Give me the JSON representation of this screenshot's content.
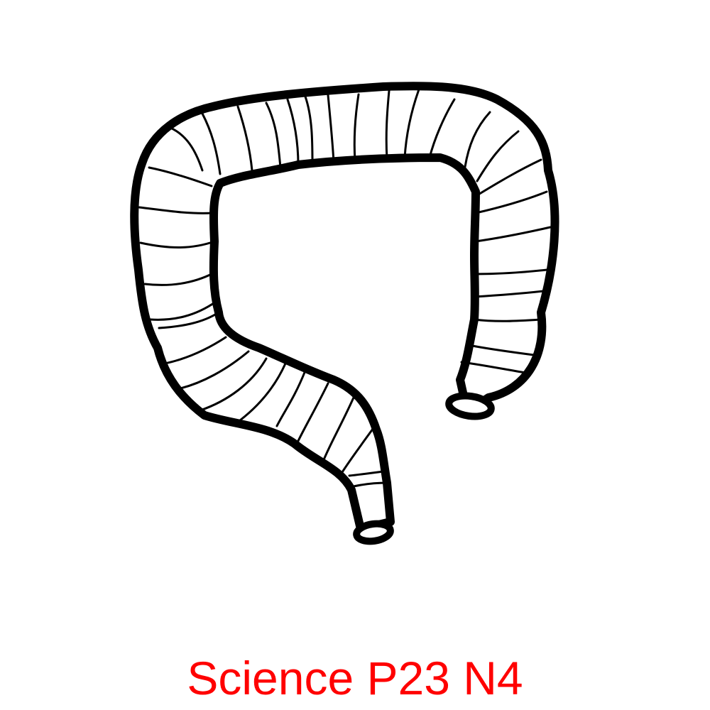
{
  "illustration": {
    "icon": "large-intestine-icon",
    "stroke_color": "#000000",
    "fill_color": "#ffffff"
  },
  "caption": {
    "text": "Science P23 N4",
    "color": "#ff0000"
  }
}
